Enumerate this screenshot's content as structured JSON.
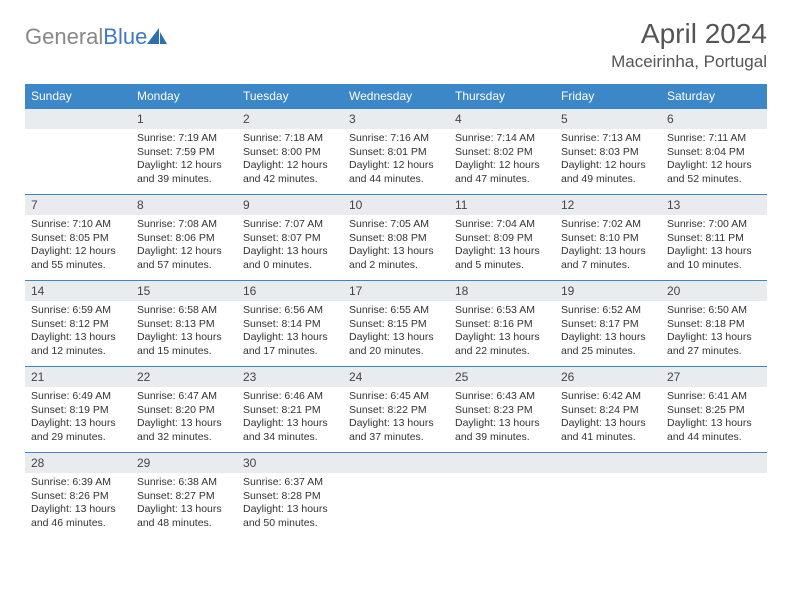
{
  "logo": {
    "text1": "General",
    "text2": "Blue"
  },
  "title": "April 2024",
  "location": "Maceirinha, Portugal",
  "colors": {
    "header_bg": "#3b87c8",
    "header_text": "#ffffff",
    "daynum_bg": "#e9ecef",
    "border": "#3b87c8",
    "body_text": "#333333",
    "logo_gray": "#888888",
    "logo_blue": "#3b7bc0",
    "background": "#ffffff"
  },
  "typography": {
    "title_fontsize": 28,
    "location_fontsize": 17,
    "header_fontsize": 12,
    "daynum_fontsize": 12,
    "body_fontsize": 10.5
  },
  "weekdays": [
    "Sunday",
    "Monday",
    "Tuesday",
    "Wednesday",
    "Thursday",
    "Friday",
    "Saturday"
  ],
  "weeks": [
    [
      null,
      {
        "n": "1",
        "sr": "Sunrise: 7:19 AM",
        "ss": "Sunset: 7:59 PM",
        "d1": "Daylight: 12 hours",
        "d2": "and 39 minutes."
      },
      {
        "n": "2",
        "sr": "Sunrise: 7:18 AM",
        "ss": "Sunset: 8:00 PM",
        "d1": "Daylight: 12 hours",
        "d2": "and 42 minutes."
      },
      {
        "n": "3",
        "sr": "Sunrise: 7:16 AM",
        "ss": "Sunset: 8:01 PM",
        "d1": "Daylight: 12 hours",
        "d2": "and 44 minutes."
      },
      {
        "n": "4",
        "sr": "Sunrise: 7:14 AM",
        "ss": "Sunset: 8:02 PM",
        "d1": "Daylight: 12 hours",
        "d2": "and 47 minutes."
      },
      {
        "n": "5",
        "sr": "Sunrise: 7:13 AM",
        "ss": "Sunset: 8:03 PM",
        "d1": "Daylight: 12 hours",
        "d2": "and 49 minutes."
      },
      {
        "n": "6",
        "sr": "Sunrise: 7:11 AM",
        "ss": "Sunset: 8:04 PM",
        "d1": "Daylight: 12 hours",
        "d2": "and 52 minutes."
      }
    ],
    [
      {
        "n": "7",
        "sr": "Sunrise: 7:10 AM",
        "ss": "Sunset: 8:05 PM",
        "d1": "Daylight: 12 hours",
        "d2": "and 55 minutes."
      },
      {
        "n": "8",
        "sr": "Sunrise: 7:08 AM",
        "ss": "Sunset: 8:06 PM",
        "d1": "Daylight: 12 hours",
        "d2": "and 57 minutes."
      },
      {
        "n": "9",
        "sr": "Sunrise: 7:07 AM",
        "ss": "Sunset: 8:07 PM",
        "d1": "Daylight: 13 hours",
        "d2": "and 0 minutes."
      },
      {
        "n": "10",
        "sr": "Sunrise: 7:05 AM",
        "ss": "Sunset: 8:08 PM",
        "d1": "Daylight: 13 hours",
        "d2": "and 2 minutes."
      },
      {
        "n": "11",
        "sr": "Sunrise: 7:04 AM",
        "ss": "Sunset: 8:09 PM",
        "d1": "Daylight: 13 hours",
        "d2": "and 5 minutes."
      },
      {
        "n": "12",
        "sr": "Sunrise: 7:02 AM",
        "ss": "Sunset: 8:10 PM",
        "d1": "Daylight: 13 hours",
        "d2": "and 7 minutes."
      },
      {
        "n": "13",
        "sr": "Sunrise: 7:00 AM",
        "ss": "Sunset: 8:11 PM",
        "d1": "Daylight: 13 hours",
        "d2": "and 10 minutes."
      }
    ],
    [
      {
        "n": "14",
        "sr": "Sunrise: 6:59 AM",
        "ss": "Sunset: 8:12 PM",
        "d1": "Daylight: 13 hours",
        "d2": "and 12 minutes."
      },
      {
        "n": "15",
        "sr": "Sunrise: 6:58 AM",
        "ss": "Sunset: 8:13 PM",
        "d1": "Daylight: 13 hours",
        "d2": "and 15 minutes."
      },
      {
        "n": "16",
        "sr": "Sunrise: 6:56 AM",
        "ss": "Sunset: 8:14 PM",
        "d1": "Daylight: 13 hours",
        "d2": "and 17 minutes."
      },
      {
        "n": "17",
        "sr": "Sunrise: 6:55 AM",
        "ss": "Sunset: 8:15 PM",
        "d1": "Daylight: 13 hours",
        "d2": "and 20 minutes."
      },
      {
        "n": "18",
        "sr": "Sunrise: 6:53 AM",
        "ss": "Sunset: 8:16 PM",
        "d1": "Daylight: 13 hours",
        "d2": "and 22 minutes."
      },
      {
        "n": "19",
        "sr": "Sunrise: 6:52 AM",
        "ss": "Sunset: 8:17 PM",
        "d1": "Daylight: 13 hours",
        "d2": "and 25 minutes."
      },
      {
        "n": "20",
        "sr": "Sunrise: 6:50 AM",
        "ss": "Sunset: 8:18 PM",
        "d1": "Daylight: 13 hours",
        "d2": "and 27 minutes."
      }
    ],
    [
      {
        "n": "21",
        "sr": "Sunrise: 6:49 AM",
        "ss": "Sunset: 8:19 PM",
        "d1": "Daylight: 13 hours",
        "d2": "and 29 minutes."
      },
      {
        "n": "22",
        "sr": "Sunrise: 6:47 AM",
        "ss": "Sunset: 8:20 PM",
        "d1": "Daylight: 13 hours",
        "d2": "and 32 minutes."
      },
      {
        "n": "23",
        "sr": "Sunrise: 6:46 AM",
        "ss": "Sunset: 8:21 PM",
        "d1": "Daylight: 13 hours",
        "d2": "and 34 minutes."
      },
      {
        "n": "24",
        "sr": "Sunrise: 6:45 AM",
        "ss": "Sunset: 8:22 PM",
        "d1": "Daylight: 13 hours",
        "d2": "and 37 minutes."
      },
      {
        "n": "25",
        "sr": "Sunrise: 6:43 AM",
        "ss": "Sunset: 8:23 PM",
        "d1": "Daylight: 13 hours",
        "d2": "and 39 minutes."
      },
      {
        "n": "26",
        "sr": "Sunrise: 6:42 AM",
        "ss": "Sunset: 8:24 PM",
        "d1": "Daylight: 13 hours",
        "d2": "and 41 minutes."
      },
      {
        "n": "27",
        "sr": "Sunrise: 6:41 AM",
        "ss": "Sunset: 8:25 PM",
        "d1": "Daylight: 13 hours",
        "d2": "and 44 minutes."
      }
    ],
    [
      {
        "n": "28",
        "sr": "Sunrise: 6:39 AM",
        "ss": "Sunset: 8:26 PM",
        "d1": "Daylight: 13 hours",
        "d2": "and 46 minutes."
      },
      {
        "n": "29",
        "sr": "Sunrise: 6:38 AM",
        "ss": "Sunset: 8:27 PM",
        "d1": "Daylight: 13 hours",
        "d2": "and 48 minutes."
      },
      {
        "n": "30",
        "sr": "Sunrise: 6:37 AM",
        "ss": "Sunset: 8:28 PM",
        "d1": "Daylight: 13 hours",
        "d2": "and 50 minutes."
      },
      null,
      null,
      null,
      null
    ]
  ]
}
